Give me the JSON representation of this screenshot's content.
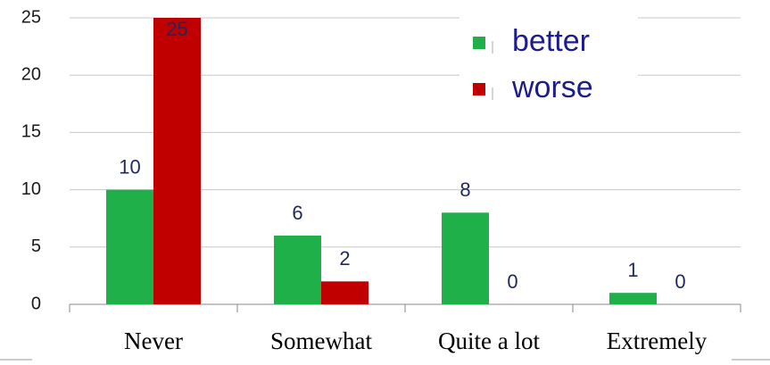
{
  "chart_data": {
    "type": "bar",
    "categories": [
      "Never",
      "Somewhat",
      "Quite a lot",
      "Extremely"
    ],
    "series": [
      {
        "name": "better",
        "color": "#1fb04a",
        "values": [
          10,
          6,
          8,
          1
        ]
      },
      {
        "name": "worse",
        "color": "#c00000",
        "values": [
          25,
          2,
          0,
          0
        ]
      }
    ],
    "ylim": [
      0,
      25
    ],
    "yticks": [
      0,
      5,
      10,
      15,
      20,
      25
    ],
    "grid": true,
    "legend": "upper right"
  }
}
